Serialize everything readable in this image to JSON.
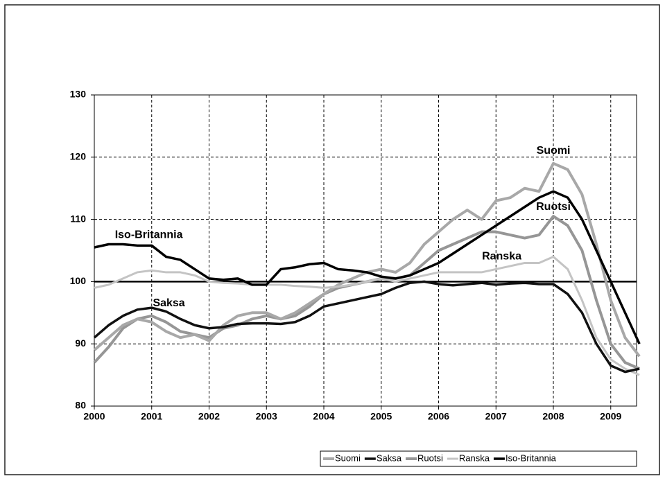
{
  "chart_data": {
    "type": "line",
    "x": [
      2000,
      2000.25,
      2000.5,
      2000.75,
      2001,
      2001.25,
      2001.5,
      2001.75,
      2002,
      2002.25,
      2002.5,
      2002.75,
      2003,
      2003.25,
      2003.5,
      2003.75,
      2004,
      2004.25,
      2004.5,
      2004.75,
      2005,
      2005.25,
      2005.5,
      2005.75,
      2006,
      2006.25,
      2006.5,
      2006.75,
      2007,
      2007.25,
      2007.5,
      2007.75,
      2008,
      2008.25,
      2008.5,
      2008.75,
      2009,
      2009.25,
      2009.5
    ],
    "series": [
      {
        "name": "Suomi",
        "color": "#a8a8a8",
        "width": 4,
        "values": [
          89,
          91,
          93,
          94,
          93.5,
          92,
          91,
          91.5,
          90.5,
          93,
          94.5,
          95,
          95,
          94,
          95,
          96.5,
          98,
          99.5,
          100.5,
          101.5,
          102,
          101.5,
          103,
          106,
          108,
          110,
          111.5,
          110,
          113,
          113.5,
          115,
          114.5,
          119,
          118,
          114,
          106,
          97,
          91,
          88
        ]
      },
      {
        "name": "Saksa",
        "color": "#111111",
        "width": 3.5,
        "values": [
          91,
          93,
          94.5,
          95.5,
          95.8,
          95.2,
          94,
          93,
          92.5,
          92.7,
          93.2,
          93.3,
          93.3,
          93.2,
          93.5,
          94.5,
          96,
          96.5,
          97,
          97.5,
          98,
          99,
          99.8,
          100,
          99.6,
          99.4,
          99.6,
          99.8,
          99.5,
          99.7,
          99.8,
          99.6,
          99.6,
          98,
          95,
          90,
          86.5,
          85.5,
          86
        ]
      },
      {
        "name": "Ruotsi",
        "color": "#969696",
        "width": 4,
        "values": [
          87,
          89.5,
          92.5,
          94,
          94.5,
          93.5,
          92,
          91.5,
          91,
          92.5,
          93,
          94,
          94.5,
          94,
          94.5,
          96,
          98,
          99,
          99.5,
          100,
          100.5,
          100.5,
          101,
          103,
          105,
          106,
          107,
          108,
          108,
          107.5,
          107,
          107.5,
          110.5,
          109,
          105,
          97,
          90,
          87,
          86
        ]
      },
      {
        "name": "Ranska",
        "color": "#c4c4c4",
        "width": 3,
        "values": [
          99,
          99.5,
          100.5,
          101.5,
          101.8,
          101.5,
          101.5,
          101,
          100,
          99.8,
          99.7,
          99.5,
          99.5,
          99.5,
          99.3,
          99.2,
          99,
          99.2,
          99.5,
          100,
          100.5,
          100,
          100.5,
          101,
          101.5,
          101.5,
          101.5,
          101.5,
          102,
          102.5,
          103,
          103,
          104,
          102,
          97,
          91,
          87.5,
          86,
          85
        ]
      },
      {
        "name": "Iso-Britannia",
        "color": "#000000",
        "width": 3.5,
        "values": [
          105.5,
          106,
          106,
          105.8,
          105.8,
          104,
          103.5,
          102,
          100.5,
          100.3,
          100.5,
          99.5,
          99.5,
          102,
          102.3,
          102.8,
          103,
          102,
          101.8,
          101.5,
          100.8,
          100.5,
          101,
          102,
          103,
          104.5,
          106,
          107.5,
          109,
          110.5,
          112,
          113.5,
          114.5,
          113.5,
          110,
          105,
          100,
          95,
          90
        ]
      }
    ],
    "hline": 100,
    "annotations": [
      {
        "text": "Suomi",
        "x": 2008,
        "y": 121
      },
      {
        "text": "Ruotsi",
        "x": 2008,
        "y": 112
      },
      {
        "text": "Ranska",
        "x": 2007.1,
        "y": 104
      },
      {
        "text": "Saksa",
        "x": 2001.3,
        "y": 96.5
      },
      {
        "text": "Iso-Britannia",
        "x": 2000.95,
        "y": 107.5
      }
    ],
    "xlim": [
      2000,
      2009.45
    ],
    "ylim": [
      80,
      130
    ],
    "xticks": [
      2000,
      2001,
      2002,
      2003,
      2004,
      2005,
      2006,
      2007,
      2008,
      2009
    ],
    "yticks": [
      80,
      90,
      100,
      110,
      120,
      130
    ],
    "grid": true,
    "legend": "bottom-right"
  }
}
